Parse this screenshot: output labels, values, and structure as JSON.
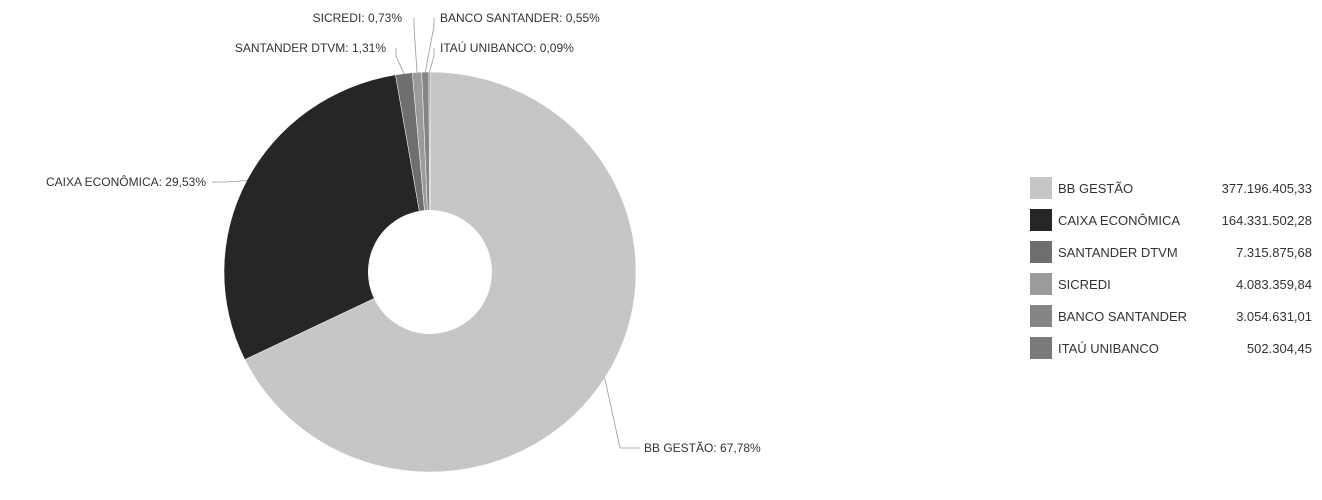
{
  "chart_data": {
    "type": "pie",
    "donut": true,
    "title": "",
    "legend_position": "right",
    "slices": [
      {
        "name": "BB GESTÃO",
        "percent": 67.78,
        "percent_label": "BB GESTÃO: 67,78%",
        "value": 377196405.33,
        "value_label": "377.196.405,33",
        "color": "#c6c6c6"
      },
      {
        "name": "CAIXA ECONÔMICA",
        "percent": 29.53,
        "percent_label": "CAIXA ECONÔMICA: 29,53%",
        "value": 164331502.28,
        "value_label": "164.331.502,28",
        "color": "#262626"
      },
      {
        "name": "SANTANDER DTVM",
        "percent": 1.31,
        "percent_label": "SANTANDER DTVM: 1,31%",
        "value": 7315875.68,
        "value_label": "7.315.875,68",
        "color": "#6f6f6f"
      },
      {
        "name": "SICREDI",
        "percent": 0.73,
        "percent_label": "SICREDI: 0,73%",
        "value": 4083359.84,
        "value_label": "4.083.359,84",
        "color": "#9b9b9b"
      },
      {
        "name": "BANCO SANTANDER",
        "percent": 0.55,
        "percent_label": "BANCO SANTANDER: 0,55%",
        "value": 3054631.01,
        "value_label": "3.054.631,01",
        "color": "#858585"
      },
      {
        "name": "ITAÚ UNIBANCO",
        "percent": 0.09,
        "percent_label": "ITAÚ UNIBANCO: 0,09%",
        "value": 502304.45,
        "value_label": "502.304,45",
        "color": "#7a7a7a"
      }
    ]
  }
}
